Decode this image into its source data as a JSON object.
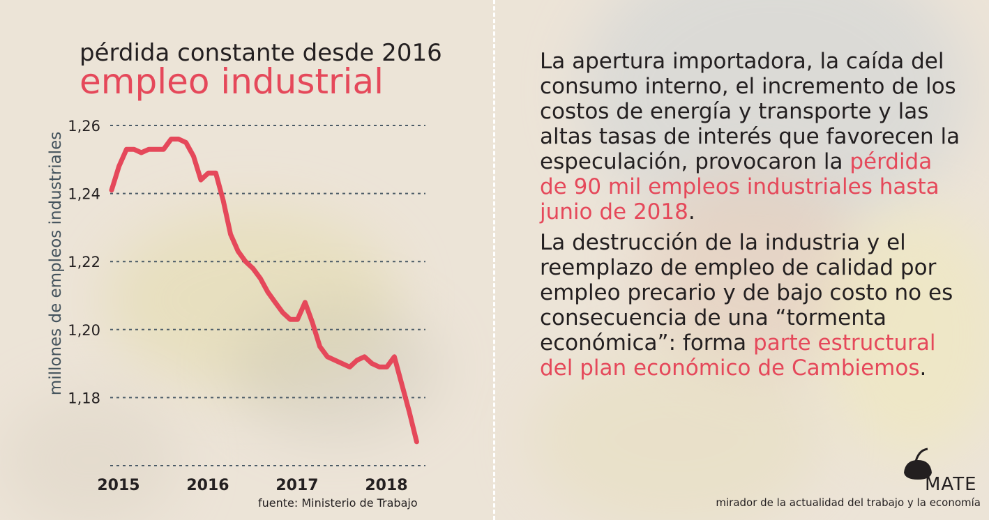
{
  "header": {
    "subtitle": "pérdida constante desde 2016",
    "title": "empleo industrial"
  },
  "source": "fuente: Ministerio de Trabajo",
  "text": {
    "p1_normal": "La apertura importadora, la caída del consumo interno, el incremento de los costos de energía y transporte y las altas tasas de interés que favorecen la especulación, provocaron la ",
    "p1_highlight": "pérdida de 90 mil empleos industriales hasta junio de 2018",
    "p1_end": ".",
    "p2_normal": "La destrucción de la industria y el reemplazo de empleo de calidad por empleo precario y de bajo costo no es consecuencia de una “tormenta económica”: forma ",
    "p2_highlight": "parte estructural del plan económico de Cambiemos",
    "p2_end": "."
  },
  "branding": {
    "logo_text": "MATE",
    "tagline": "mirador de la actualidad del trabajo y la economía"
  },
  "colors": {
    "accent": "#e5485a",
    "text": "#231f20",
    "axis_label": "#43525c",
    "grid": "#4a5a66"
  },
  "chart_data": {
    "type": "line",
    "title": "empleo industrial",
    "subtitle": "pérdida constante desde 2016",
    "ylabel": "millones de empleos industriales",
    "xlabel": "",
    "ylim": [
      1.16,
      1.26
    ],
    "xlim": [
      2015,
      2018.5
    ],
    "y_ticks": [
      "1,26",
      "1,24",
      "1,22",
      "1,20",
      "1,18"
    ],
    "x_ticks": [
      "2015",
      "2016",
      "2017",
      "2018"
    ],
    "grid": true,
    "series": [
      {
        "name": "",
        "color": "#e5485a",
        "x": [
          2015.0,
          2015.083,
          2015.167,
          2015.25,
          2015.333,
          2015.417,
          2015.5,
          2015.583,
          2015.667,
          2015.75,
          2015.833,
          2015.917,
          2016.0,
          2016.083,
          2016.167,
          2016.25,
          2016.333,
          2016.417,
          2016.5,
          2016.583,
          2016.667,
          2016.75,
          2016.833,
          2016.917,
          2017.0,
          2017.083,
          2017.167,
          2017.25,
          2017.333,
          2017.417,
          2017.5,
          2017.583,
          2017.667,
          2017.75,
          2017.833,
          2017.917,
          2018.0,
          2018.083,
          2018.167,
          2018.25,
          2018.333,
          2018.417
        ],
        "values": [
          1.241,
          1.248,
          1.253,
          1.253,
          1.252,
          1.253,
          1.253,
          1.253,
          1.256,
          1.256,
          1.255,
          1.251,
          1.244,
          1.246,
          1.246,
          1.238,
          1.228,
          1.223,
          1.22,
          1.218,
          1.215,
          1.211,
          1.208,
          1.205,
          1.203,
          1.203,
          1.208,
          1.202,
          1.195,
          1.192,
          1.191,
          1.19,
          1.189,
          1.191,
          1.192,
          1.19,
          1.189,
          1.189,
          1.192,
          1.184,
          1.176,
          1.167
        ]
      }
    ]
  }
}
